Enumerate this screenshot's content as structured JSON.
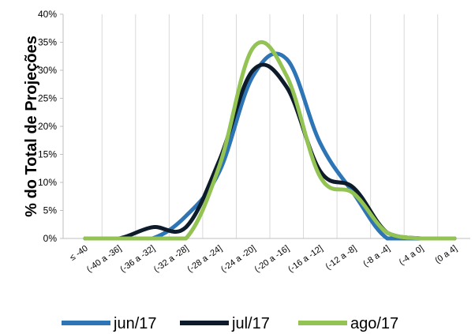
{
  "chart_data": {
    "type": "line",
    "title": "",
    "xlabel": "",
    "ylabel": "% do Total de Projeções",
    "ylim": [
      0,
      40
    ],
    "yticks": [
      "0%",
      "5%",
      "10%",
      "15%",
      "20%",
      "25%",
      "30%",
      "35%",
      "40%"
    ],
    "grid": "vertical",
    "legend": "bottom",
    "categories": [
      "≤ -40",
      "(-40 a -36]",
      "(-36 a -32]",
      "(-32 a -28]",
      "(-28 a -24]",
      "(-24 a -20]",
      "(-20 a -16]",
      "(-16 a -12]",
      "(-12 a -8]",
      "(-8 a -4]",
      "(-4 a 0]",
      "(0 a 4]"
    ],
    "series": [
      {
        "name": "jun/17",
        "color": "#2E75B6",
        "values": [
          0,
          0,
          0,
          4,
          12,
          29,
          32,
          17,
          8,
          0,
          0,
          0
        ]
      },
      {
        "name": "jul/17",
        "color": "#0D1B2A",
        "values": [
          0,
          0,
          2,
          2,
          14,
          30,
          27,
          12,
          9,
          1,
          0,
          0
        ]
      },
      {
        "name": "ago/17",
        "color": "#92C353",
        "values": [
          0,
          0,
          0,
          0,
          13,
          34,
          29,
          11,
          8,
          1,
          0,
          0
        ]
      }
    ]
  }
}
